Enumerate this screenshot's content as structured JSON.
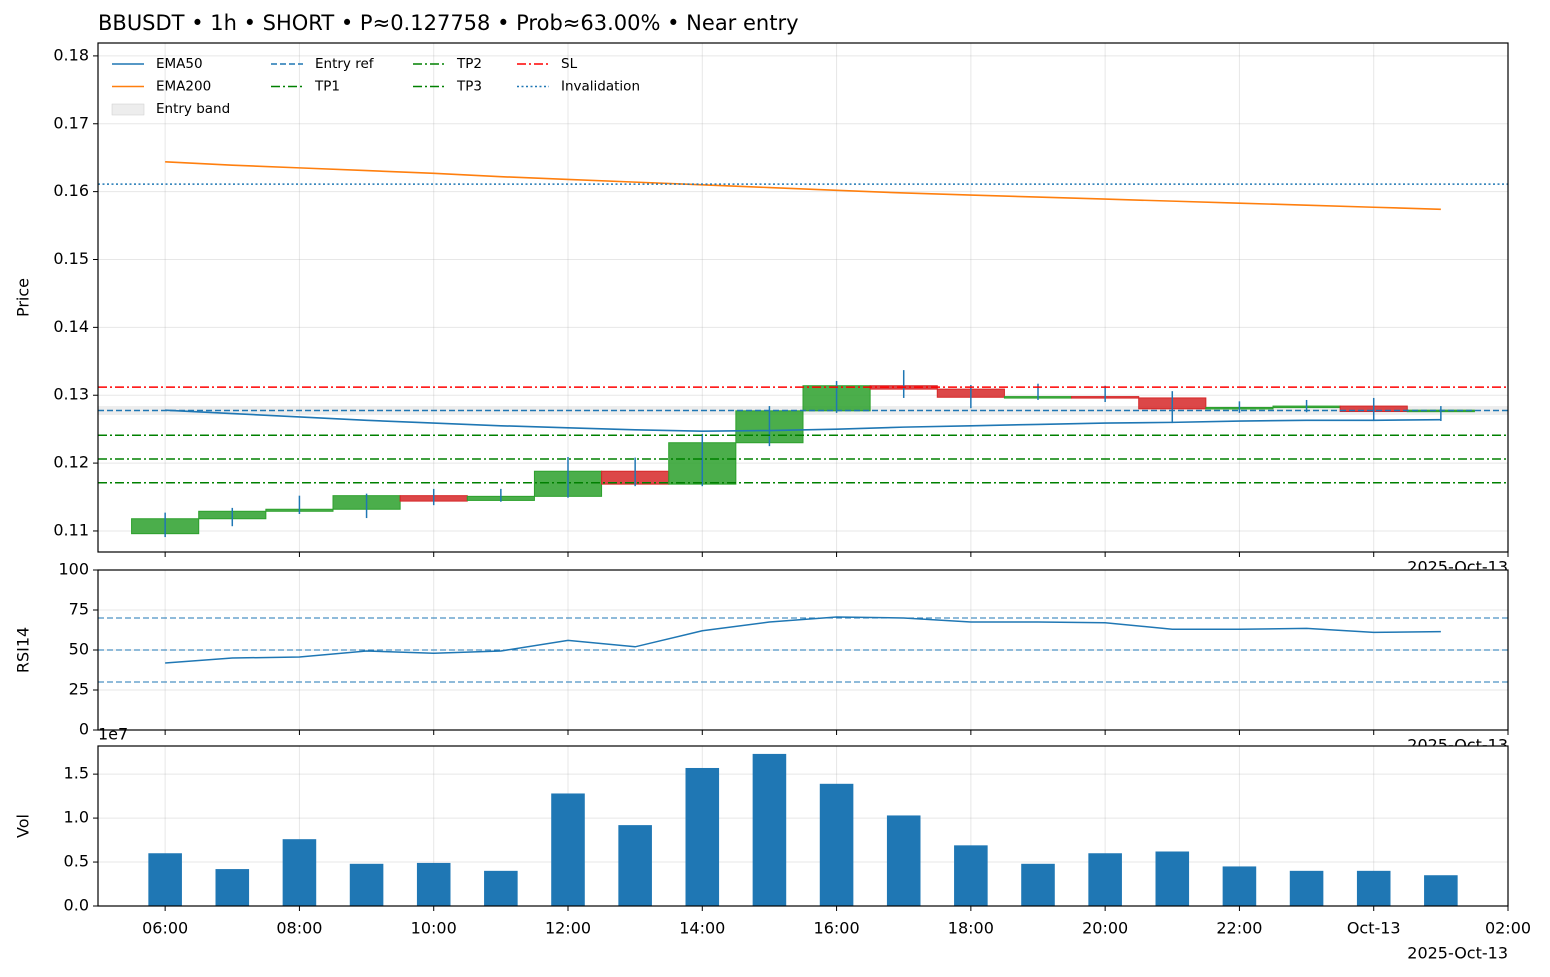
{
  "chart_data": [
    {
      "type": "candlestick",
      "title": "BBUSDT • 1h • SHORT • P≈0.127758 • Prob≈63.00% • Near entry",
      "y_label": "Price",
      "offset_label": "2025-Oct-13",
      "x": [
        "2025-10-12T06:00",
        "2025-10-12T07:00",
        "2025-10-12T08:00",
        "2025-10-12T09:00",
        "2025-10-12T10:00",
        "2025-10-12T11:00",
        "2025-10-12T12:00",
        "2025-10-12T13:00",
        "2025-10-12T14:00",
        "2025-10-12T15:00",
        "2025-10-12T16:00",
        "2025-10-12T17:00",
        "2025-10-12T18:00",
        "2025-10-12T19:00",
        "2025-10-12T20:00",
        "2025-10-12T21:00",
        "2025-10-12T22:00",
        "2025-10-12T23:00",
        "2025-10-13T00:00",
        "2025-10-13T01:00"
      ],
      "open": [
        0.1096,
        0.1118,
        0.1129,
        0.1132,
        0.1152,
        0.1145,
        0.1151,
        0.1188,
        0.1169,
        0.123,
        0.1277,
        0.1314,
        0.1309,
        0.1296,
        0.1298,
        0.1296,
        0.128,
        0.1282,
        0.1284,
        0.1277
      ],
      "high": [
        0.1127,
        0.1134,
        0.1152,
        0.1155,
        0.1162,
        0.1162,
        0.1209,
        0.1208,
        0.1243,
        0.1284,
        0.1321,
        0.1337,
        0.1315,
        0.1317,
        0.1314,
        0.1306,
        0.1291,
        0.1293,
        0.1296,
        0.1284
      ],
      "low": [
        0.1091,
        0.1107,
        0.1125,
        0.1119,
        0.1138,
        0.1143,
        0.1149,
        0.1166,
        0.1166,
        0.1225,
        0.1274,
        0.1296,
        0.1281,
        0.1293,
        0.129,
        0.1259,
        0.1274,
        0.1275,
        0.1262,
        0.1262
      ],
      "close": [
        0.1118,
        0.1129,
        0.1132,
        0.1152,
        0.1144,
        0.1151,
        0.1188,
        0.1169,
        0.123,
        0.1277,
        0.1314,
        0.1309,
        0.1297,
        0.1298,
        0.1296,
        0.128,
        0.1282,
        0.1284,
        0.1276,
        0.1278
      ],
      "up_color": "#2ca02c",
      "down_color": "#d62728",
      "wick_color": "#1f77b4",
      "series": [
        {
          "name": "EMA50",
          "color": "#1f77b4",
          "values": [
            0.1278,
            0.1273,
            0.1268,
            0.1263,
            0.1259,
            0.1255,
            0.1252,
            0.1249,
            0.1247,
            0.1248,
            0.125,
            0.1253,
            0.1255,
            0.1257,
            0.1259,
            0.126,
            0.1262,
            0.1263,
            0.1263,
            0.1264
          ]
        },
        {
          "name": "EMA200",
          "color": "#ff7f0e",
          "values": [
            0.1644,
            0.1639,
            0.1635,
            0.1631,
            0.1627,
            0.1622,
            0.1618,
            0.1614,
            0.161,
            0.1606,
            0.1602,
            0.1598,
            0.1595,
            0.1592,
            0.1589,
            0.1586,
            0.1583,
            0.158,
            0.1577,
            0.1574
          ]
        }
      ],
      "bands": [
        {
          "name": "Entry band",
          "range": [
            0.1271,
            0.1284
          ],
          "color": "#cccccc"
        }
      ],
      "hlines": [
        {
          "name": "Entry ref",
          "value": 0.127758,
          "color": "#1f77b4",
          "style": "dashed"
        },
        {
          "name": "TP1",
          "value": 0.1241,
          "color": "#008000",
          "style": "dashdot"
        },
        {
          "name": "TP2",
          "value": 0.1206,
          "color": "#008000",
          "style": "dashdot"
        },
        {
          "name": "TP3",
          "value": 0.1171,
          "color": "#008000",
          "style": "dashdot"
        },
        {
          "name": "SL",
          "value": 0.1312,
          "color": "#ff0000",
          "style": "dashdot"
        },
        {
          "name": "Invalidation",
          "value": 0.1611,
          "color": "#1f77b4",
          "style": "dotted"
        }
      ],
      "legend": "upper left",
      "xlim": [
        "2025-10-12T05:00",
        "2025-10-13T02:00"
      ],
      "ylim": [
        0.1069,
        0.1819
      ],
      "yticks": [
        0.11,
        0.12,
        0.13,
        0.14,
        0.15,
        0.16,
        0.17,
        0.18
      ],
      "grid": true
    },
    {
      "type": "line",
      "y_label": "RSI14",
      "offset_label": "2025-Oct-13",
      "x": [
        "2025-10-12T06:00",
        "2025-10-12T07:00",
        "2025-10-12T08:00",
        "2025-10-12T09:00",
        "2025-10-12T10:00",
        "2025-10-12T11:00",
        "2025-10-12T12:00",
        "2025-10-12T13:00",
        "2025-10-12T14:00",
        "2025-10-12T15:00",
        "2025-10-12T16:00",
        "2025-10-12T17:00",
        "2025-10-12T18:00",
        "2025-10-12T19:00",
        "2025-10-12T20:00",
        "2025-10-12T21:00",
        "2025-10-12T22:00",
        "2025-10-12T23:00",
        "2025-10-13T00:00",
        "2025-10-13T01:00"
      ],
      "values": [
        41.9,
        45,
        45.6,
        49.4,
        48,
        49.4,
        56,
        52,
        62,
        67.5,
        70.6,
        70,
        67.5,
        67.5,
        67,
        63,
        63,
        63.5,
        61,
        61.5
      ],
      "color": "#1f77b4",
      "ref_lines": [
        30,
        50,
        70
      ],
      "ref_color": "#1f77b4",
      "xlim": [
        "2025-10-12T05:00",
        "2025-10-13T02:00"
      ],
      "ylim": [
        0,
        100
      ],
      "yticks": [
        0,
        25,
        50,
        75,
        100
      ],
      "grid": true
    },
    {
      "type": "bar",
      "y_label": "Vol",
      "offset_label": "2025-Oct-13",
      "y_offset_label": "1e7",
      "x": [
        "2025-10-12T06:00",
        "2025-10-12T07:00",
        "2025-10-12T08:00",
        "2025-10-12T09:00",
        "2025-10-12T10:00",
        "2025-10-12T11:00",
        "2025-10-12T12:00",
        "2025-10-12T13:00",
        "2025-10-12T14:00",
        "2025-10-12T15:00",
        "2025-10-12T16:00",
        "2025-10-12T17:00",
        "2025-10-12T18:00",
        "2025-10-12T19:00",
        "2025-10-12T20:00",
        "2025-10-12T21:00",
        "2025-10-12T22:00",
        "2025-10-12T23:00",
        "2025-10-13T00:00",
        "2025-10-13T01:00"
      ],
      "values": [
        6000000,
        4200000,
        7600000,
        4800000,
        4900000,
        4000000,
        12800000,
        9200000,
        15700000,
        17300000,
        13900000,
        10300000,
        6900000,
        4800000,
        6000000,
        6200000,
        4500000,
        4000000,
        4000000,
        3500000
      ],
      "color": "#1f77b4",
      "xlim": [
        "2025-10-12T05:00",
        "2025-10-13T02:00"
      ],
      "xticks": [
        {
          "value": "2025-10-12T06:00",
          "label": "06:00"
        },
        {
          "value": "2025-10-12T08:00",
          "label": "08:00"
        },
        {
          "value": "2025-10-12T10:00",
          "label": "10:00"
        },
        {
          "value": "2025-10-12T12:00",
          "label": "12:00"
        },
        {
          "value": "2025-10-12T14:00",
          "label": "14:00"
        },
        {
          "value": "2025-10-12T16:00",
          "label": "16:00"
        },
        {
          "value": "2025-10-12T18:00",
          "label": "18:00"
        },
        {
          "value": "2025-10-12T20:00",
          "label": "20:00"
        },
        {
          "value": "2025-10-12T22:00",
          "label": "22:00"
        },
        {
          "value": "2025-10-13T00:00",
          "label": "Oct-13"
        },
        {
          "value": "2025-10-13T02:00",
          "label": "02:00"
        }
      ],
      "ylim": [
        0,
        18200000
      ],
      "yticks": [
        {
          "value": 0,
          "label": "0.0"
        },
        {
          "value": 5000000,
          "label": "0.5"
        },
        {
          "value": 10000000,
          "label": "1.0"
        },
        {
          "value": 15000000,
          "label": "1.5"
        }
      ],
      "grid": true
    }
  ]
}
